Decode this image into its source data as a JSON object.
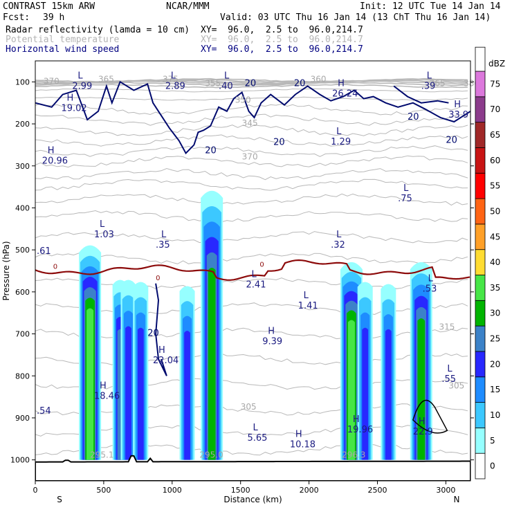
{
  "header": {
    "model": "CONTRAST 15km ARW",
    "org": "NCAR/MMM",
    "init": "Init: 12 UTC Tue 14 Jan 14",
    "fcst_label": "Fcst:",
    "fcst_value": "39 h",
    "valid": "Valid: 03 UTC Thu 16 Jan 14 (13 ChT Thu 16 Jan 14)",
    "fields": [
      {
        "name": "Radar reflectivity (lamda = 10 cm)",
        "xy": "XY=  96.0,  2.5 to  96.0,214.7",
        "color": "#000000"
      },
      {
        "name": "Potential temperature",
        "xy": "XY=  96.0,  2.5 to  96.0,214.7",
        "color": "#b4b4b4"
      },
      {
        "name": "Horizontal wind speed",
        "xy": "XY=  96.0,  2.5 to  96.0,214.7",
        "color": "#000080"
      }
    ]
  },
  "chart_data": {
    "type": "cross-section",
    "ylabel": "Pressure (hPa)",
    "xlabel": "Distance (km)",
    "left_end": "S",
    "right_end": "N",
    "xlim": [
      0,
      3180
    ],
    "ylim": [
      1050,
      50
    ],
    "xticks": [
      0,
      500,
      1000,
      1500,
      2000,
      2500,
      3000
    ],
    "yticks": [
      100,
      200,
      300,
      400,
      500,
      600,
      700,
      800,
      900,
      1000
    ],
    "colorbar": {
      "unit": "dBZ",
      "levels": [
        0,
        5,
        10,
        15,
        20,
        25,
        30,
        35,
        40,
        45,
        50,
        55,
        60,
        65,
        70,
        75
      ],
      "colors": [
        "#ffffff",
        "#96ffff",
        "#3cc8ff",
        "#1e8cff",
        "#2828ff",
        "#3c82c8",
        "#00b400",
        "#46e646",
        "#ffdc32",
        "#ffa028",
        "#ff6414",
        "#ff0000",
        "#c81414",
        "#a02828",
        "#8c3c8c",
        "#dc78dc"
      ]
    },
    "reflectivity_cells": [
      {
        "x": 400,
        "base": 1000,
        "top": 480,
        "max_dbz": 35
      },
      {
        "x": 620,
        "base": 1000,
        "top": 565,
        "max_dbz": 25
      },
      {
        "x": 680,
        "base": 1000,
        "top": 565,
        "max_dbz": 20
      },
      {
        "x": 770,
        "base": 1000,
        "top": 570,
        "max_dbz": 20
      },
      {
        "x": 1110,
        "base": 1000,
        "top": 580,
        "max_dbz": 20
      },
      {
        "x": 1290,
        "base": 1000,
        "top": 350,
        "max_dbz": 30
      },
      {
        "x": 2310,
        "base": 1000,
        "top": 520,
        "max_dbz": 35
      },
      {
        "x": 2410,
        "base": 1000,
        "top": 570,
        "max_dbz": 20
      },
      {
        "x": 2580,
        "base": 1000,
        "top": 575,
        "max_dbz": 20
      },
      {
        "x": 2820,
        "base": 1000,
        "top": 520,
        "max_dbz": 30
      }
    ],
    "freezing_level_label": "0",
    "theta_labels": [
      "370",
      "365",
      "375",
      "360",
      "355",
      "350",
      "345",
      "370",
      "365",
      "380",
      "315",
      "305",
      "305",
      "295.1",
      "295.0",
      "296.3"
    ],
    "wind_contour_label": "20",
    "extrema": [
      {
        "type": "L",
        "value": "2.99",
        "x": 310,
        "p": 92
      },
      {
        "type": "L",
        "value": "2.89",
        "x": 990,
        "p": 92
      },
      {
        "type": "L",
        "value": ".40",
        "x": 1380,
        "p": 92
      },
      {
        "type": "H",
        "value": "26.24",
        "x": 2210,
        "p": 110
      },
      {
        "type": "L",
        "value": ".39",
        "x": 2860,
        "p": 92
      },
      {
        "type": "H",
        "value": "19.02",
        "x": 230,
        "p": 145
      },
      {
        "type": "H",
        "value": "33.9",
        "x": 3060,
        "p": 160
      },
      {
        "type": "L",
        "value": "1.29",
        "x": 2200,
        "p": 225
      },
      {
        "type": "H",
        "value": "20.96",
        "x": 90,
        "p": 270
      },
      {
        "type": "L",
        "value": ".75",
        "x": 2690,
        "p": 360
      },
      {
        "type": "L",
        "value": "1.03",
        "x": 470,
        "p": 445
      },
      {
        "type": "L",
        "value": ".35",
        "x": 920,
        "p": 470
      },
      {
        "type": "L",
        "value": ".32",
        "x": 2200,
        "p": 470
      },
      {
        "type": "L",
        "value": "2.41",
        "x": 1580,
        "p": 565
      },
      {
        "type": "L",
        "value": "1.41",
        "x": 1960,
        "p": 615
      },
      {
        "type": "L",
        "value": ".53",
        "x": 2870,
        "p": 575
      },
      {
        "type": "H",
        "value": "9.39",
        "x": 1700,
        "p": 700
      },
      {
        "type": "H",
        "value": "22.04",
        "x": 900,
        "p": 745
      },
      {
        "type": "L",
        "value": ".55",
        "x": 3010,
        "p": 790
      },
      {
        "type": "H",
        "value": "18.46",
        "x": 470,
        "p": 830
      },
      {
        "type": "H",
        "value": "19.96",
        "x": 2320,
        "p": 910
      },
      {
        "type": "H",
        "value": "22.9",
        "x": 2800,
        "p": 915
      },
      {
        "type": "L",
        "value": "5.65",
        "x": 1590,
        "p": 930
      },
      {
        "type": "H",
        "value": "10.18",
        "x": 1900,
        "p": 945
      }
    ],
    "edge_labels": [
      {
        "value": ".61",
        "p": 510
      },
      {
        "value": ".54",
        "p": 890
      }
    ]
  }
}
